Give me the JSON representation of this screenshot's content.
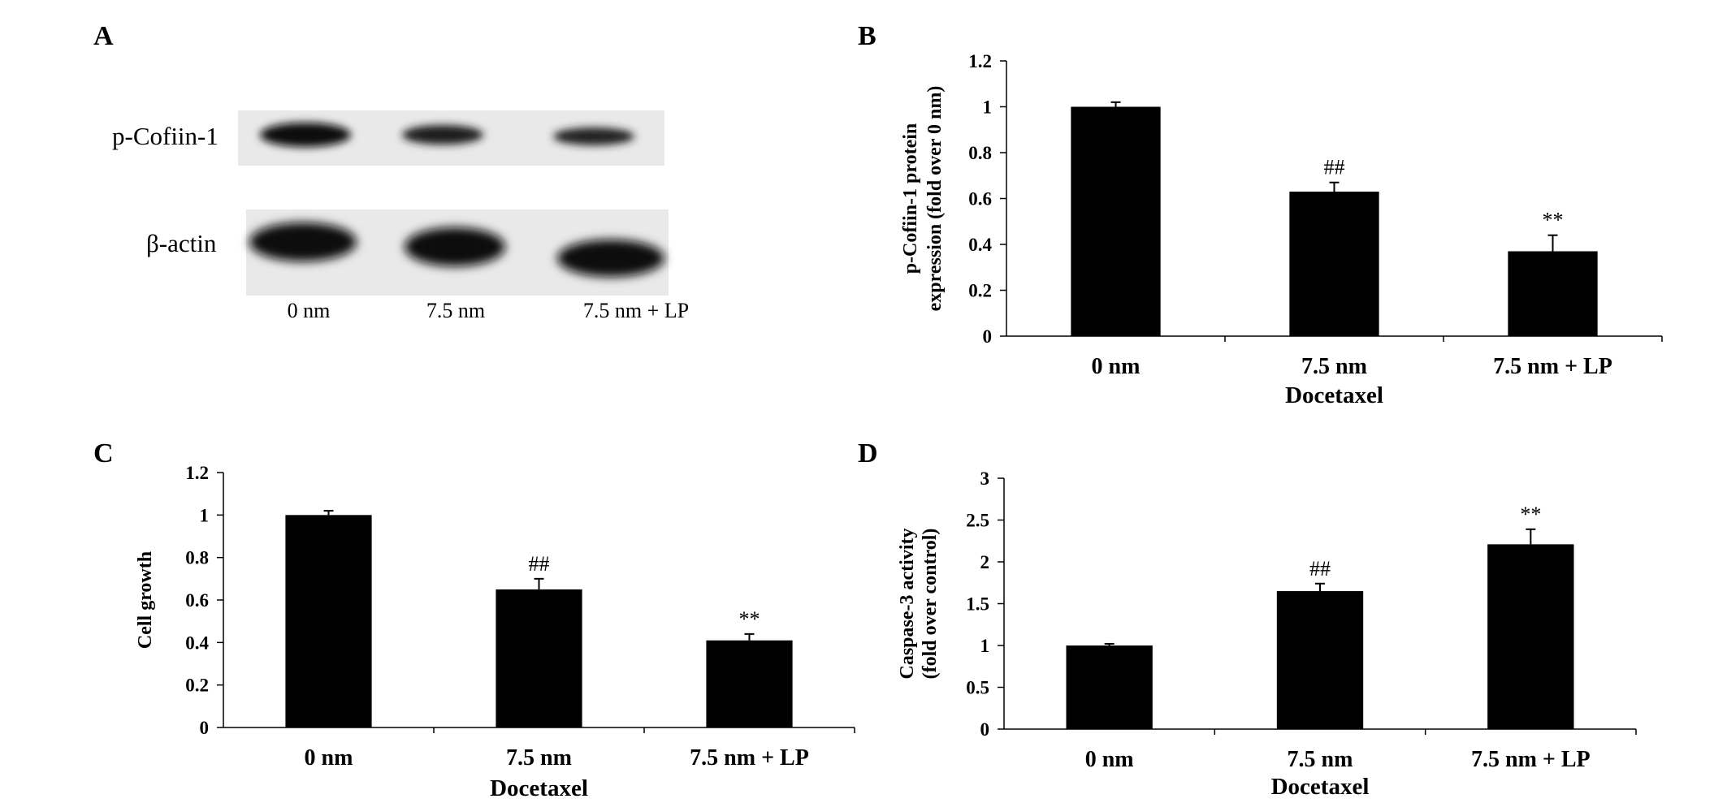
{
  "panel_labels": [
    "A",
    "B",
    "C",
    "D"
  ],
  "blot": {
    "rows": [
      "p-Cofiin-1",
      "β-actin"
    ],
    "lanes": [
      "0 nm",
      "7.5 nm",
      "7.5 nm + LP"
    ],
    "colors": {
      "band": "#111111",
      "background": "#e9e9e9"
    }
  },
  "chart_data": [
    {
      "panel": "B",
      "type": "bar",
      "categories": [
        "0 nm",
        "7.5 nm",
        "7.5 nm + LP"
      ],
      "values": [
        1.0,
        0.63,
        0.37
      ],
      "errors": [
        0.02,
        0.04,
        0.07
      ],
      "annotations": [
        "",
        "##",
        "**"
      ],
      "xlabel": "Docetaxel",
      "ylabel": [
        "p-Cofiin-1 protein",
        "expression (fold over 0 nm)"
      ],
      "ylim": [
        0,
        1.2
      ],
      "yticks": [
        "0",
        "0.2",
        "0.4",
        "0.6",
        "0.8",
        "1",
        "1.2"
      ],
      "grid": false,
      "bar_color": "#000000"
    },
    {
      "panel": "C",
      "type": "bar",
      "categories": [
        "0 nm",
        "7.5 nm",
        "7.5 nm + LP"
      ],
      "values": [
        1.0,
        0.65,
        0.41
      ],
      "errors": [
        0.02,
        0.05,
        0.03
      ],
      "annotations": [
        "",
        "##",
        "**"
      ],
      "xlabel": "Docetaxel",
      "ylabel": [
        "Cell growth"
      ],
      "ylim": [
        0,
        1.2
      ],
      "yticks": [
        "0",
        "0.2",
        "0.4",
        "0.6",
        "0.8",
        "1",
        "1.2"
      ],
      "grid": false,
      "bar_color": "#000000"
    },
    {
      "panel": "D",
      "type": "bar",
      "categories": [
        "0 nm",
        "7.5 nm",
        "7.5 nm + LP"
      ],
      "values": [
        1.0,
        1.65,
        2.21
      ],
      "errors": [
        0.02,
        0.09,
        0.18
      ],
      "annotations": [
        "",
        "##",
        "**"
      ],
      "xlabel": "Docetaxel",
      "ylabel": [
        "Caspase-3 activity",
        "(fold over control)"
      ],
      "ylim": [
        0,
        3
      ],
      "yticks": [
        "0",
        "0.5",
        "1",
        "1.5",
        "2",
        "2.5",
        "3"
      ],
      "grid": false,
      "bar_color": "#000000"
    }
  ]
}
